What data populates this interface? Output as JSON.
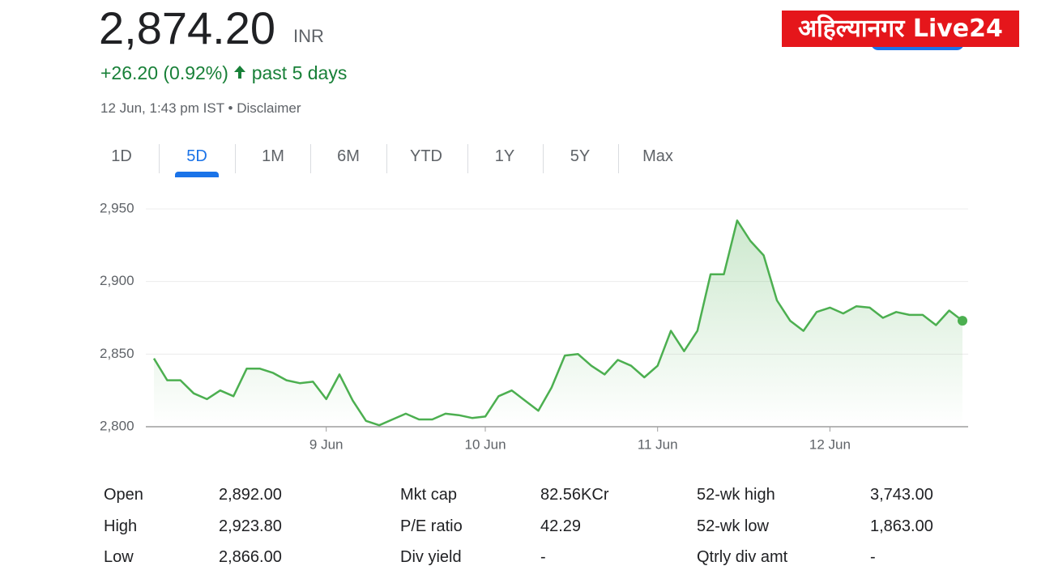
{
  "logo": "अहिल्यानगर Live24",
  "header": {
    "price": "2,874.20",
    "currency": "INR",
    "change": "+26.20 (0.92%)",
    "period": "past 5 days",
    "timestamp": "12 Jun, 1:43 pm IST",
    "separator": "•",
    "disclaimer": "Disclaimer"
  },
  "tabs": [
    "1D",
    "5D",
    "1M",
    "6M",
    "YTD",
    "1Y",
    "5Y",
    "Max"
  ],
  "active_tab": 1,
  "chart_data": {
    "type": "line",
    "color": "#4caf50",
    "grid": true,
    "categories": [
      null,
      null,
      null,
      null,
      null,
      null,
      null,
      null,
      null,
      null,
      null,
      null,
      null,
      "9 Jun",
      null,
      null,
      null,
      null,
      null,
      null,
      null,
      null,
      null,
      null,
      null,
      "10 Jun",
      null,
      null,
      null,
      null,
      null,
      null,
      null,
      null,
      null,
      null,
      null,
      null,
      "11 Jun",
      null,
      null,
      null,
      null,
      null,
      null,
      null,
      null,
      null,
      null,
      null,
      null,
      "12 Jun",
      null,
      null,
      null,
      null,
      null,
      null,
      null,
      null,
      null,
      null
    ],
    "values": [
      2847,
      2832,
      2832,
      2823,
      2819,
      2825,
      2821,
      2840,
      2840,
      2837,
      2832,
      2830,
      2831,
      2819,
      2836,
      2818,
      2804,
      2801,
      2805,
      2809,
      2805,
      2805,
      2809,
      2808,
      2806,
      2807,
      2821,
      2825,
      2818,
      2811,
      2827,
      2849,
      2850,
      2842,
      2836,
      2846,
      2842,
      2834,
      2842,
      2866,
      2852,
      2866,
      2905,
      2905,
      2942,
      2928,
      2918,
      2887,
      2873,
      2866,
      2879,
      2882,
      2878,
      2883,
      2882,
      2875,
      2879,
      2877,
      2877,
      2870,
      2880,
      2873
    ],
    "ylim": [
      2800,
      2950
    ],
    "yticks": [
      {
        "value": 2800,
        "label": "2,800"
      },
      {
        "value": 2850,
        "label": "2,850"
      },
      {
        "value": 2900,
        "label": "2,900"
      },
      {
        "value": 2950,
        "label": "2,950"
      }
    ]
  },
  "stats": {
    "rows": [
      [
        "Open",
        "2,892.00",
        "Mkt cap",
        "82.56KCr",
        "52-wk high",
        "3,743.00"
      ],
      [
        "High",
        "2,923.80",
        "P/E ratio",
        "42.29",
        "52-wk low",
        "1,863.00"
      ],
      [
        "Low",
        "2,866.00",
        "Div yield",
        "-",
        "Qtrly div amt",
        "-"
      ]
    ]
  }
}
